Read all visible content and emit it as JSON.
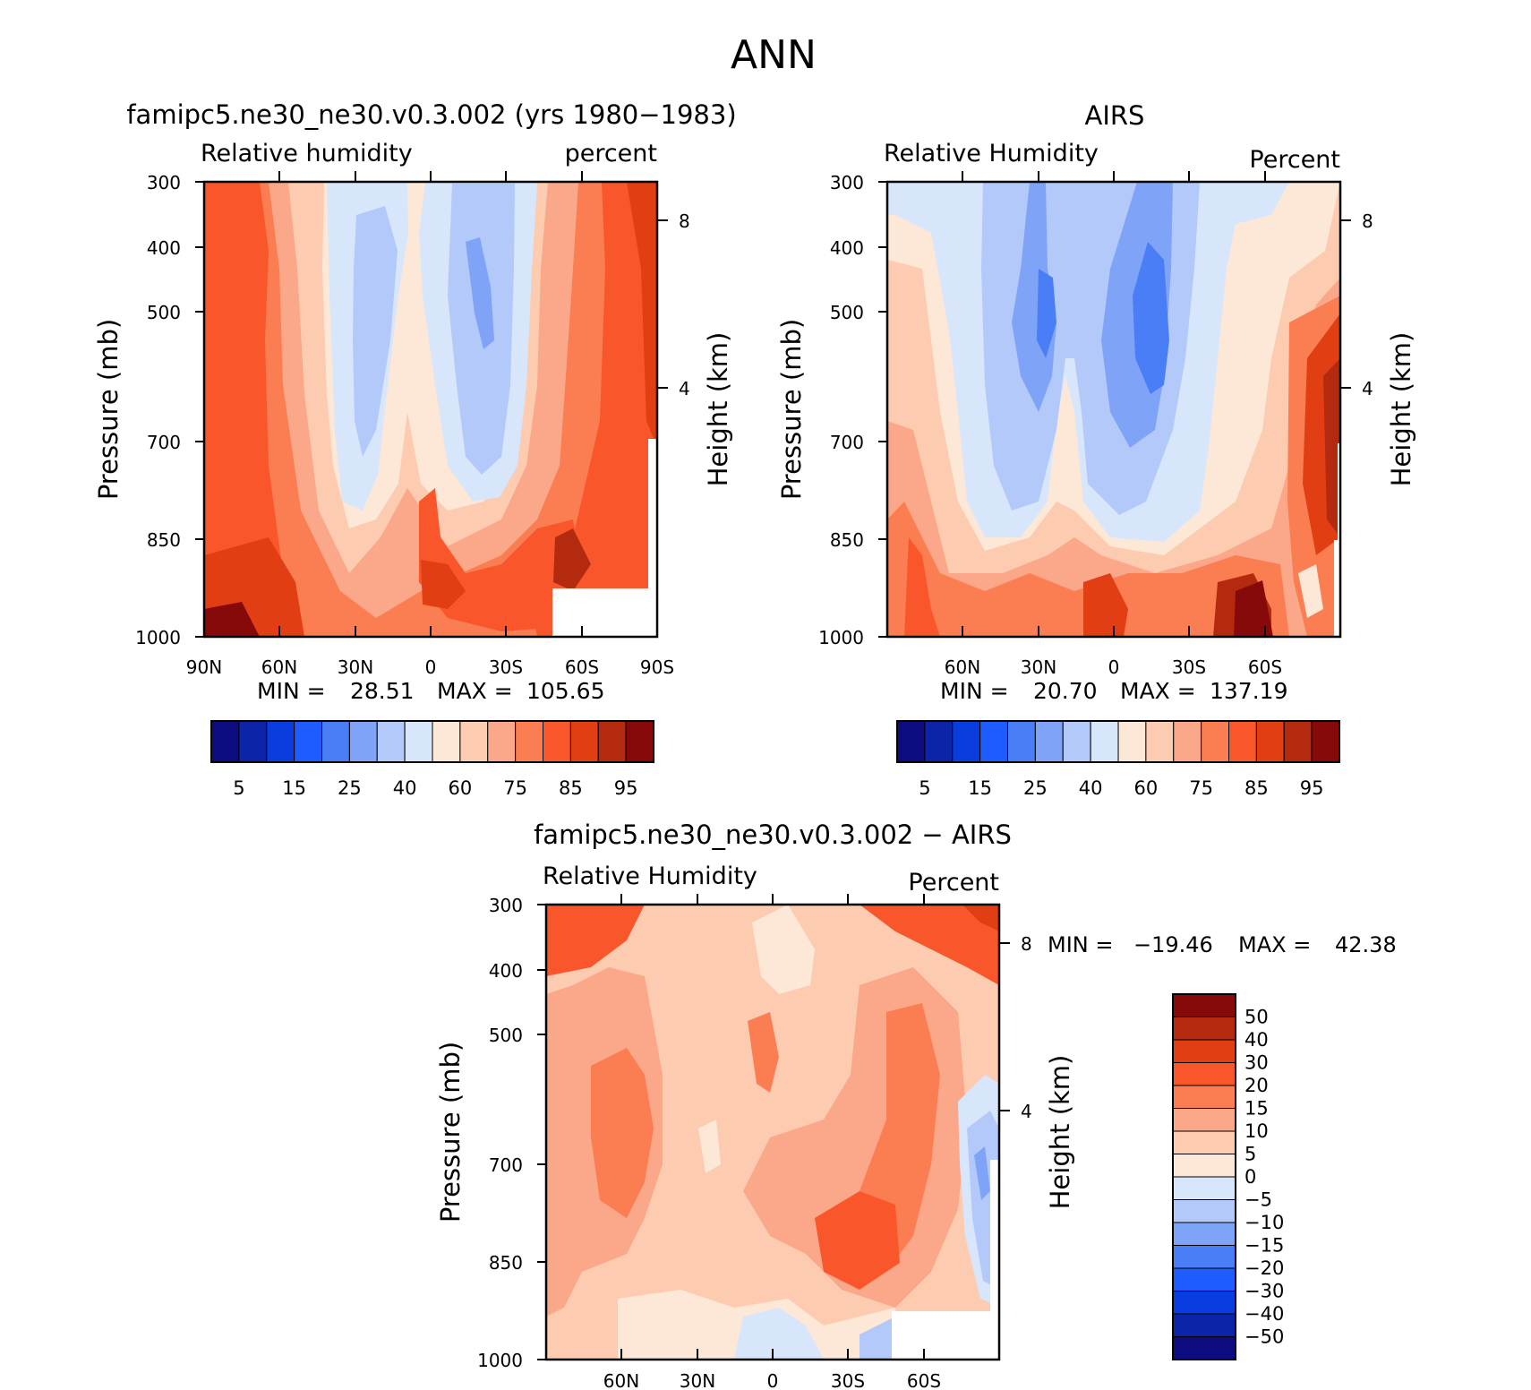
{
  "figure_title": "ANN",
  "chart_data": [
    {
      "id": "model",
      "type": "heatmap",
      "title": "famipc5.ne30_ne30.v0.3.002 (yrs 1980−1983)",
      "left_label": "Relative humidity",
      "right_label": "percent",
      "ylabel": "Pressure (mb)",
      "y2label": "Height (km)",
      "x_ticks": [
        "90N",
        "60N",
        "30N",
        "0",
        "30S",
        "60S",
        "90S"
      ],
      "x_tick_lats": [
        90,
        60,
        30,
        0,
        -30,
        -60,
        -90
      ],
      "xlim": [
        90,
        -90
      ],
      "y_ticks": [
        300,
        400,
        500,
        700,
        850,
        1000
      ],
      "ylim": [
        300,
        1000
      ],
      "y2_ticks": [
        "8",
        "4"
      ],
      "y2_tick_km": [
        8,
        4
      ],
      "min_label": "MIN =",
      "min_value": "28.51",
      "max_label": "MAX =",
      "max_value": "105.65",
      "grid": false
    },
    {
      "id": "obs",
      "type": "heatmap",
      "title": "AIRS",
      "left_label": "Relative Humidity",
      "right_label": "Percent",
      "ylabel": "Pressure (mb)",
      "y2label": "Height (km)",
      "x_ticks": [
        "60N",
        "30N",
        "0",
        "30S",
        "60S"
      ],
      "x_tick_lats": [
        60,
        30,
        0,
        -30,
        -60
      ],
      "xlim": [
        90,
        -90
      ],
      "y_ticks": [
        300,
        400,
        500,
        700,
        850,
        1000
      ],
      "ylim": [
        300,
        1000
      ],
      "y2_ticks": [
        "8",
        "4"
      ],
      "y2_tick_km": [
        8,
        4
      ],
      "min_label": "MIN =",
      "min_value": "20.70",
      "max_label": "MAX =",
      "max_value": "137.19",
      "grid": false
    },
    {
      "id": "diff",
      "type": "heatmap",
      "title": "famipc5.ne30_ne30.v0.3.002 − AIRS",
      "left_label": "Relative Humidity",
      "right_label": "Percent",
      "ylabel": "Pressure (mb)",
      "y2label": "Height (km)",
      "x_ticks": [
        "60N",
        "30N",
        "0",
        "30S",
        "60S"
      ],
      "x_tick_lats": [
        60,
        30,
        0,
        -30,
        -60
      ],
      "xlim": [
        90,
        -90
      ],
      "y_ticks": [
        300,
        400,
        500,
        700,
        850,
        1000
      ],
      "ylim": [
        300,
        1000
      ],
      "y2_ticks": [
        "8",
        "4"
      ],
      "y2_tick_km": [
        8,
        4
      ],
      "min_label": "MIN =",
      "min_value": "−19.46",
      "max_label": "MAX =",
      "max_value": "42.38",
      "grid": false
    }
  ],
  "colorbars": {
    "absolute": {
      "labels": [
        "5",
        "15",
        "25",
        "40",
        "60",
        "75",
        "85",
        "95"
      ],
      "colors": [
        "#0c0c80",
        "#0b24a8",
        "#0a3de0",
        "#1f5cff",
        "#4a7ef7",
        "#7fa3f7",
        "#b3c9f9",
        "#d8e6fb",
        "#fde8d7",
        "#fccbb0",
        "#fba789",
        "#fb7d52",
        "#f9572b",
        "#e13e14",
        "#b42a0f",
        "#870a0a"
      ]
    },
    "difference": {
      "labels": [
        "50",
        "40",
        "30",
        "20",
        "15",
        "10",
        "5",
        "0",
        "−5",
        "−10",
        "−15",
        "−20",
        "−30",
        "−40",
        "−50"
      ],
      "colors": [
        "#870a0a",
        "#b42a0f",
        "#e13e14",
        "#f9572b",
        "#fb7d52",
        "#fba789",
        "#fccbb0",
        "#fde8d7",
        "#d8e6fb",
        "#b3c9f9",
        "#7fa3f7",
        "#4a7ef7",
        "#1f5cff",
        "#0a3de0",
        "#0b24a8",
        "#0c0c80"
      ]
    }
  }
}
